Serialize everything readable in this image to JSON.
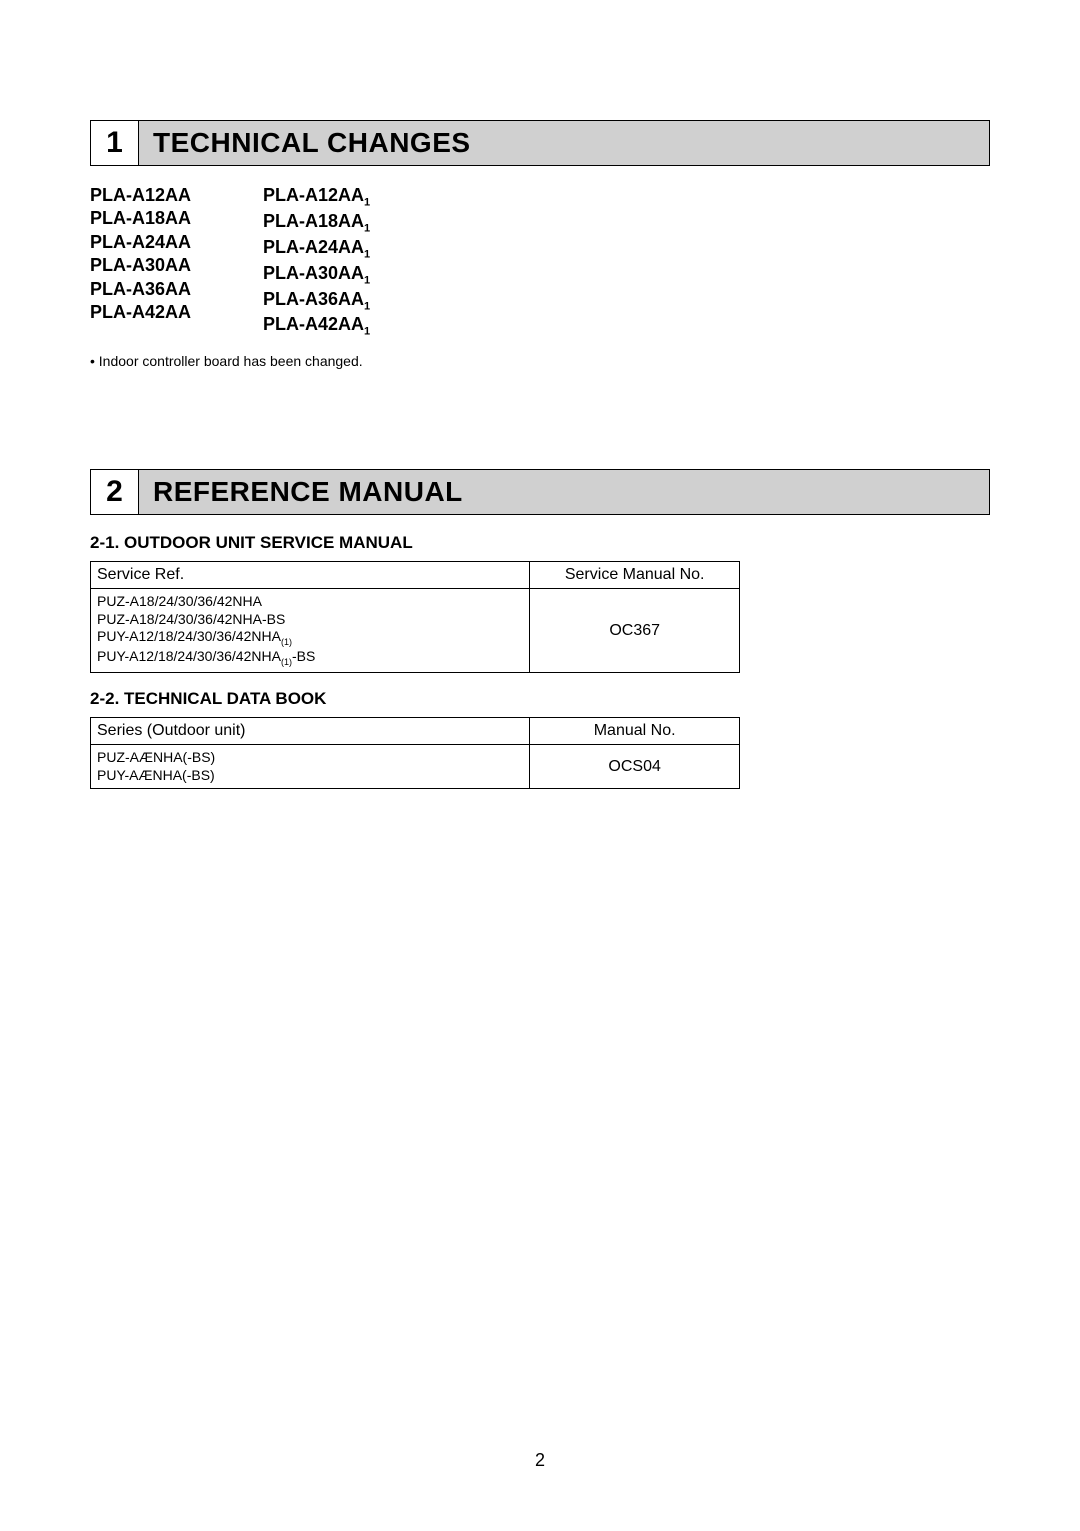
{
  "section1": {
    "number": "1",
    "title": "TECHNICAL CHANGES",
    "models_left": [
      "PLA-A12AA",
      "PLA-A18AA",
      "PLA-A24AA",
      "PLA-A30AA",
      "PLA-A36AA",
      "PLA-A42AA"
    ],
    "models_right": [
      "PLA-A12AA",
      "PLA-A18AA",
      "PLA-A24AA",
      "PLA-A30AA",
      "PLA-A36AA",
      "PLA-A42AA"
    ],
    "models_right_sub": "1",
    "note": "• Indoor controller board has been changed."
  },
  "section2": {
    "number": "2",
    "title": "REFERENCE MANUAL",
    "sub1": {
      "heading": "2-1. OUTDOOR UNIT SERVICE MANUAL",
      "header_left": "Service Ref.",
      "header_right": "Service Manual No.",
      "row_refs": [
        "PUZ-A18/24/30/36/42NHA",
        "PUZ-A18/24/30/36/42NHA-BS",
        "PUY-A12/18/24/30/36/42NHA",
        "PUY-A12/18/24/30/36/42NHA"
      ],
      "row_refs_sub": [
        "(1)",
        "(1)"
      ],
      "row_refs_suffix": [
        "",
        "-BS"
      ],
      "manual_no": "OC367"
    },
    "sub2": {
      "heading": "2-2. TECHNICAL DATA BOOK",
      "header_left": "Series (Outdoor unit)",
      "header_right": "Manual No.",
      "row_refs": [
        "PUZ-AÆNHA(-BS)",
        "PUY-AÆNHA(-BS)"
      ],
      "manual_no": "OCS04"
    }
  },
  "page_number": "2",
  "colors": {
    "section_bg": "#d0d0d0",
    "border": "#000000",
    "text": "#000000",
    "page_bg": "#ffffff"
  }
}
